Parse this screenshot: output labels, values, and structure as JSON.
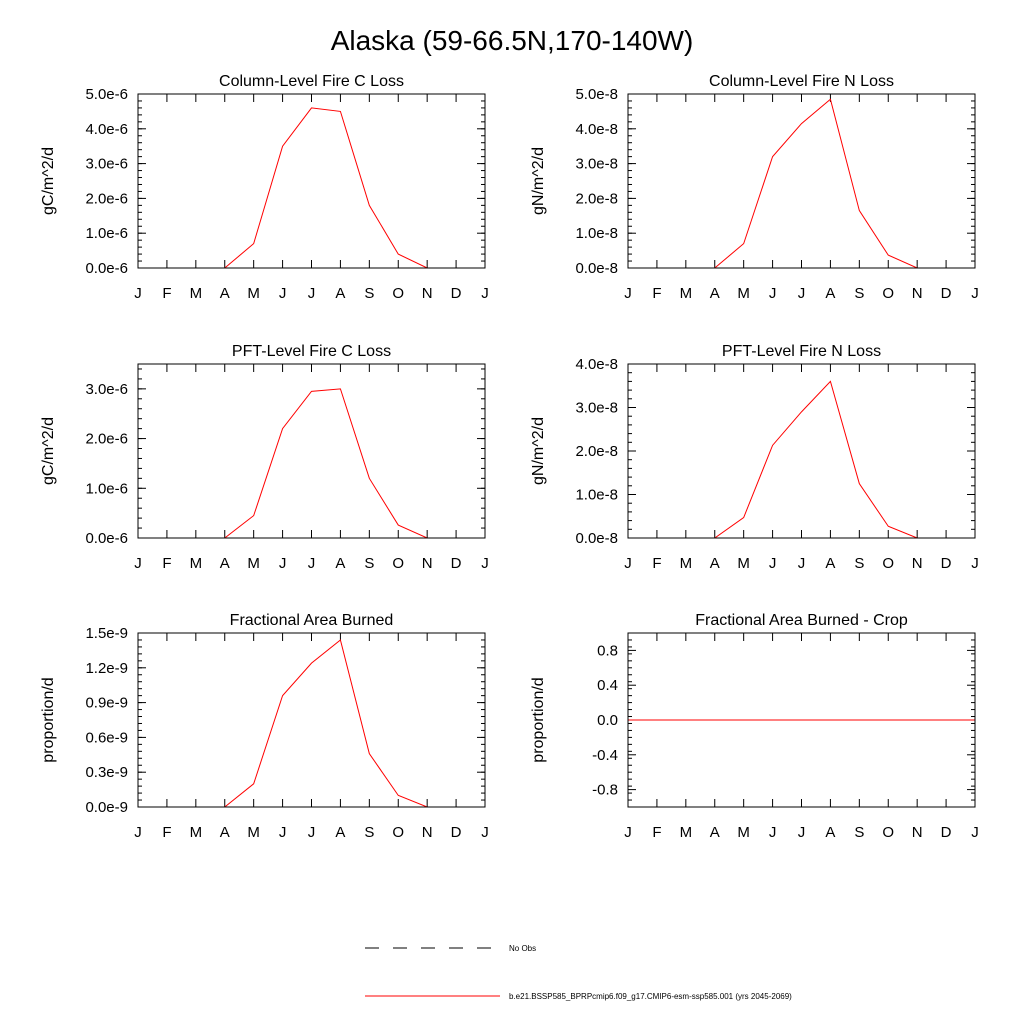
{
  "figure": {
    "title": "Alaska (59-66.5N,170-140W)"
  },
  "legend": {
    "items": [
      {
        "label": "No Obs",
        "style": "dashed",
        "color": "#000000"
      },
      {
        "label": "b.e21.BSSP585_BPRPcmip6.f09_g17.CMIP6-esm-ssp585.001 (yrs 2045-2069)",
        "style": "solid",
        "color": "#ff0000"
      }
    ]
  },
  "chart_data": [
    {
      "type": "line",
      "title": "Column-Level Fire C Loss",
      "ylabel": "gC/m^2/d",
      "categories": [
        "J",
        "F",
        "M",
        "A",
        "M",
        "J",
        "J",
        "A",
        "S",
        "O",
        "N",
        "D",
        "J"
      ],
      "ylim": [
        0,
        5e-06
      ],
      "yticks": [
        0,
        1e-06,
        2e-06,
        3e-06,
        4e-06,
        5e-06
      ],
      "ytick_labels": [
        "0.0e-6",
        "1.0e-6",
        "2.0e-6",
        "3.0e-6",
        "4.0e-6",
        "5.0e-6"
      ],
      "series": [
        {
          "color": "#ff0000",
          "values": [
            0,
            0,
            0,
            0,
            7e-07,
            3.5e-06,
            4.6e-06,
            4.5e-06,
            1.8e-06,
            4e-07,
            0,
            0,
            0
          ]
        }
      ]
    },
    {
      "type": "line",
      "title": "Column-Level Fire N Loss",
      "ylabel": "gN/m^2/d",
      "categories": [
        "J",
        "F",
        "M",
        "A",
        "M",
        "J",
        "J",
        "A",
        "S",
        "O",
        "N",
        "D",
        "J"
      ],
      "ylim": [
        0,
        5e-08
      ],
      "yticks": [
        0,
        1e-08,
        2e-08,
        3e-08,
        4e-08,
        5e-08
      ],
      "ytick_labels": [
        "0.0e-8",
        "1.0e-8",
        "2.0e-8",
        "3.0e-8",
        "4.0e-8",
        "5.0e-8"
      ],
      "series": [
        {
          "color": "#ff0000",
          "values": [
            0,
            0,
            0,
            0,
            7e-09,
            3.2e-08,
            4.15e-08,
            4.85e-08,
            1.65e-08,
            3.7e-09,
            0,
            0,
            0
          ]
        }
      ]
    },
    {
      "type": "line",
      "title": "PFT-Level Fire C Loss",
      "ylabel": "gC/m^2/d",
      "categories": [
        "J",
        "F",
        "M",
        "A",
        "M",
        "J",
        "J",
        "A",
        "S",
        "O",
        "N",
        "D",
        "J"
      ],
      "ylim": [
        0,
        3.5e-06
      ],
      "yticks": [
        0,
        1e-06,
        2e-06,
        3e-06
      ],
      "ytick_labels": [
        "0.0e-6",
        "1.0e-6",
        "2.0e-6",
        "3.0e-6"
      ],
      "series": [
        {
          "color": "#ff0000",
          "values": [
            0,
            0,
            0,
            0,
            4.5e-07,
            2.2e-06,
            2.95e-06,
            3e-06,
            1.2e-06,
            2.6e-07,
            0,
            0,
            0
          ]
        }
      ]
    },
    {
      "type": "line",
      "title": "PFT-Level Fire N Loss",
      "ylabel": "gN/m^2/d",
      "categories": [
        "J",
        "F",
        "M",
        "A",
        "M",
        "J",
        "J",
        "A",
        "S",
        "O",
        "N",
        "D",
        "J"
      ],
      "ylim": [
        0,
        4e-08
      ],
      "yticks": [
        0,
        1e-08,
        2e-08,
        3e-08,
        4e-08
      ],
      "ytick_labels": [
        "0.0e-8",
        "1.0e-8",
        "2.0e-8",
        "3.0e-8",
        "4.0e-8"
      ],
      "series": [
        {
          "color": "#ff0000",
          "values": [
            0,
            0,
            0,
            0,
            4.7e-09,
            2.13e-08,
            2.9e-08,
            3.6e-08,
            1.25e-08,
            2.7e-09,
            0,
            0,
            0
          ]
        }
      ]
    },
    {
      "type": "line",
      "title": "Fractional Area Burned",
      "ylabel": "proportion/d",
      "categories": [
        "J",
        "F",
        "M",
        "A",
        "M",
        "J",
        "J",
        "A",
        "S",
        "O",
        "N",
        "D",
        "J"
      ],
      "ylim": [
        0,
        1.5e-09
      ],
      "yticks": [
        0,
        3e-10,
        6e-10,
        9e-10,
        1.2e-09,
        1.5e-09
      ],
      "ytick_labels": [
        "0.0e-9",
        "0.3e-9",
        "0.6e-9",
        "0.9e-9",
        "1.2e-9",
        "1.5e-9"
      ],
      "series": [
        {
          "color": "#ff0000",
          "values": [
            0,
            0,
            0,
            0,
            2e-10,
            9.6e-10,
            1.24e-09,
            1.44e-09,
            4.6e-10,
            1e-10,
            0,
            0,
            0
          ]
        }
      ]
    },
    {
      "type": "line",
      "title": "Fractional Area Burned - Crop",
      "ylabel": "proportion/d",
      "categories": [
        "J",
        "F",
        "M",
        "A",
        "M",
        "J",
        "J",
        "A",
        "S",
        "O",
        "N",
        "D",
        "J"
      ],
      "ylim": [
        -1.0,
        1.0
      ],
      "yticks": [
        -0.8,
        -0.4,
        0,
        0.4,
        0.8
      ],
      "ytick_labels": [
        "-0.8",
        "-0.4",
        "0.0",
        "0.4",
        "0.8"
      ],
      "series": [
        {
          "color": "#ff0000",
          "values": [
            0,
            0,
            0,
            0,
            0,
            0,
            0,
            0,
            0,
            0,
            0,
            0,
            0
          ]
        }
      ]
    }
  ]
}
